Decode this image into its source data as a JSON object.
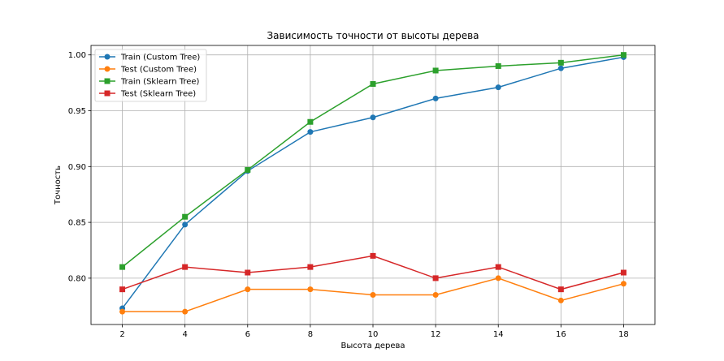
{
  "chart_data": {
    "type": "line",
    "title": "Зависимость точности от высоты дерева",
    "xlabel": "Высота дерева",
    "ylabel": "Точность",
    "x": [
      2,
      4,
      6,
      8,
      10,
      12,
      14,
      16,
      18
    ],
    "xticks": [
      "2",
      "4",
      "6",
      "8",
      "10",
      "12",
      "14",
      "16",
      "18"
    ],
    "yticks": [
      "0.80",
      "0.85",
      "0.90",
      "0.95",
      "1.00"
    ],
    "ytick_values": [
      0.8,
      0.85,
      0.9,
      0.95,
      1.0
    ],
    "xlim": [
      1,
      19
    ],
    "ylim": [
      0.7585,
      1.0085
    ],
    "grid": true,
    "legend_position": "top-left",
    "series": [
      {
        "name": "Train (Custom Tree)",
        "color": "#1f77b4",
        "marker": "circle",
        "values": [
          0.773,
          0.848,
          0.896,
          0.931,
          0.944,
          0.961,
          0.971,
          0.988,
          0.998
        ]
      },
      {
        "name": "Test (Custom Tree)",
        "color": "#ff7f0e",
        "marker": "circle",
        "values": [
          0.77,
          0.77,
          0.79,
          0.79,
          0.785,
          0.785,
          0.8,
          0.78,
          0.795
        ]
      },
      {
        "name": "Train (Sklearn Tree)",
        "color": "#2ca02c",
        "marker": "square",
        "values": [
          0.81,
          0.855,
          0.897,
          0.94,
          0.974,
          0.986,
          0.99,
          0.993,
          1.0
        ]
      },
      {
        "name": "Test (Sklearn Tree)",
        "color": "#d62728",
        "marker": "square",
        "values": [
          0.79,
          0.81,
          0.805,
          0.81,
          0.82,
          0.8,
          0.81,
          0.79,
          0.805
        ]
      }
    ]
  }
}
